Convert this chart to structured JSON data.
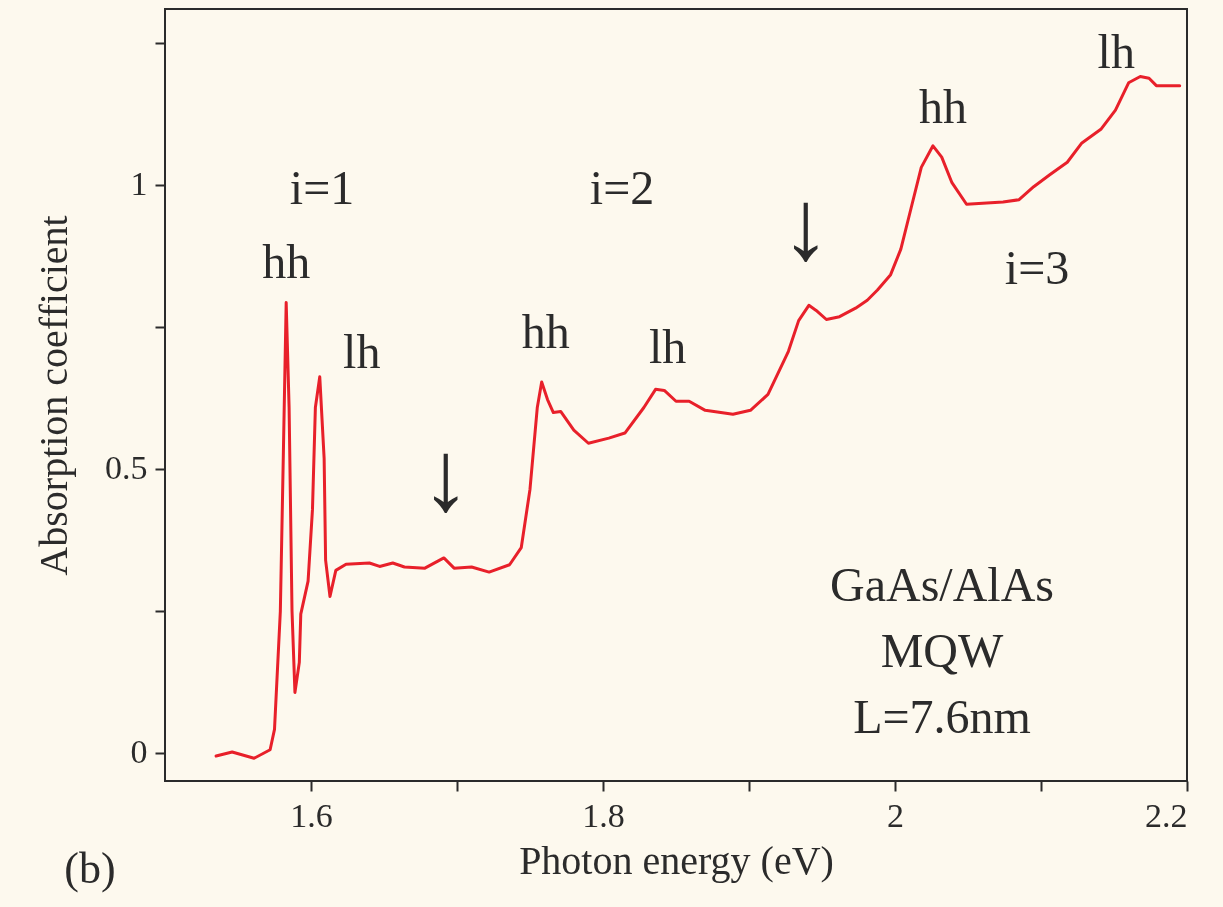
{
  "chart_data": {
    "type": "line",
    "xlabel": "Photon energy (eV)",
    "ylabel": "Absorption coefficient",
    "xlim": [
      1.5,
      2.2
    ],
    "ylim": [
      -0.05,
      1.31
    ],
    "xticks": [
      1.6,
      {
        "value": 1.7,
        "label": null
      },
      1.8,
      {
        "value": 1.9,
        "label": null
      },
      {
        "value": 2.0,
        "label": "2"
      },
      {
        "value": 2.1,
        "label": null
      },
      2.2
    ],
    "yticks": [
      0,
      {
        "value": 0.25,
        "label": null
      },
      0.5,
      {
        "value": 0.75,
        "label": null
      },
      {
        "value": 1.0,
        "label": "1"
      },
      {
        "value": 1.25,
        "label": null
      }
    ],
    "grid": false,
    "marker": "none",
    "line_style": "solid",
    "series": [
      {
        "color": "#e8202a",
        "x": [
          1.535,
          1.546,
          1.561,
          1.572,
          1.575,
          1.579,
          1.581,
          1.583,
          1.585,
          1.587,
          1.589,
          1.592,
          1.593,
          1.598,
          1.601,
          1.603,
          1.606,
          1.609,
          1.61,
          1.613,
          1.617,
          1.624,
          1.64,
          1.647,
          1.656,
          1.664,
          1.678,
          1.691,
          1.698,
          1.71,
          1.722,
          1.736,
          1.744,
          1.75,
          1.755,
          1.758,
          1.762,
          1.766,
          1.771,
          1.78,
          1.79,
          1.804,
          1.815,
          1.828,
          1.836,
          1.842,
          1.85,
          1.859,
          1.87,
          1.889,
          1.901,
          1.913,
          1.927,
          1.934,
          1.941,
          1.946,
          1.953,
          1.962,
          1.973,
          1.981,
          1.988,
          1.997,
          2.004,
          2.011,
          2.018,
          2.026,
          2.032,
          2.039,
          2.049,
          2.074,
          2.085,
          2.095,
          2.106,
          2.118,
          2.128,
          2.141,
          2.151,
          2.16,
          2.168,
          2.174,
          2.179,
          2.195
        ],
        "values": [
          -0.006,
          0.001,
          -0.01,
          0.005,
          0.041,
          0.249,
          0.518,
          0.793,
          0.608,
          0.249,
          0.106,
          0.159,
          0.244,
          0.302,
          0.428,
          0.608,
          0.662,
          0.518,
          0.339,
          0.275,
          0.321,
          0.332,
          0.334,
          0.328,
          0.334,
          0.327,
          0.325,
          0.343,
          0.325,
          0.327,
          0.318,
          0.331,
          0.361,
          0.464,
          0.608,
          0.653,
          0.622,
          0.599,
          0.601,
          0.568,
          0.545,
          0.554,
          0.563,
          0.608,
          0.64,
          0.638,
          0.619,
          0.619,
          0.603,
          0.596,
          0.603,
          0.631,
          0.707,
          0.761,
          0.788,
          0.779,
          0.763,
          0.768,
          0.783,
          0.797,
          0.815,
          0.842,
          0.887,
          0.959,
          1.031,
          1.069,
          1.049,
          1.004,
          0.966,
          0.97,
          0.974,
          0.997,
          1.018,
          1.04,
          1.074,
          1.098,
          1.132,
          1.18,
          1.191,
          1.188,
          1.175,
          1.175
        ]
      }
    ],
    "annotations": [
      "i=1",
      {
        "text": "hh",
        "x": 1.583,
        "y": 0.793
      },
      {
        "text": "lh",
        "x": 1.606,
        "y": 0.662
      },
      {
        "text": "↓",
        "x": 1.691,
        "y": 0.343
      },
      "i=2",
      {
        "text": "hh",
        "x": 1.758,
        "y": 0.653
      },
      {
        "text": "lh",
        "x": 1.836,
        "y": 0.64
      },
      {
        "text": "↓",
        "x": 1.941,
        "y": 0.788
      },
      {
        "text": "hh",
        "x": 2.026,
        "y": 1.069
      },
      "i=3",
      {
        "text": "lh",
        "x": 2.168,
        "y": 1.191
      },
      "GaAs/AlAs\nMQW\nL=7.6nm",
      "(b)"
    ]
  }
}
